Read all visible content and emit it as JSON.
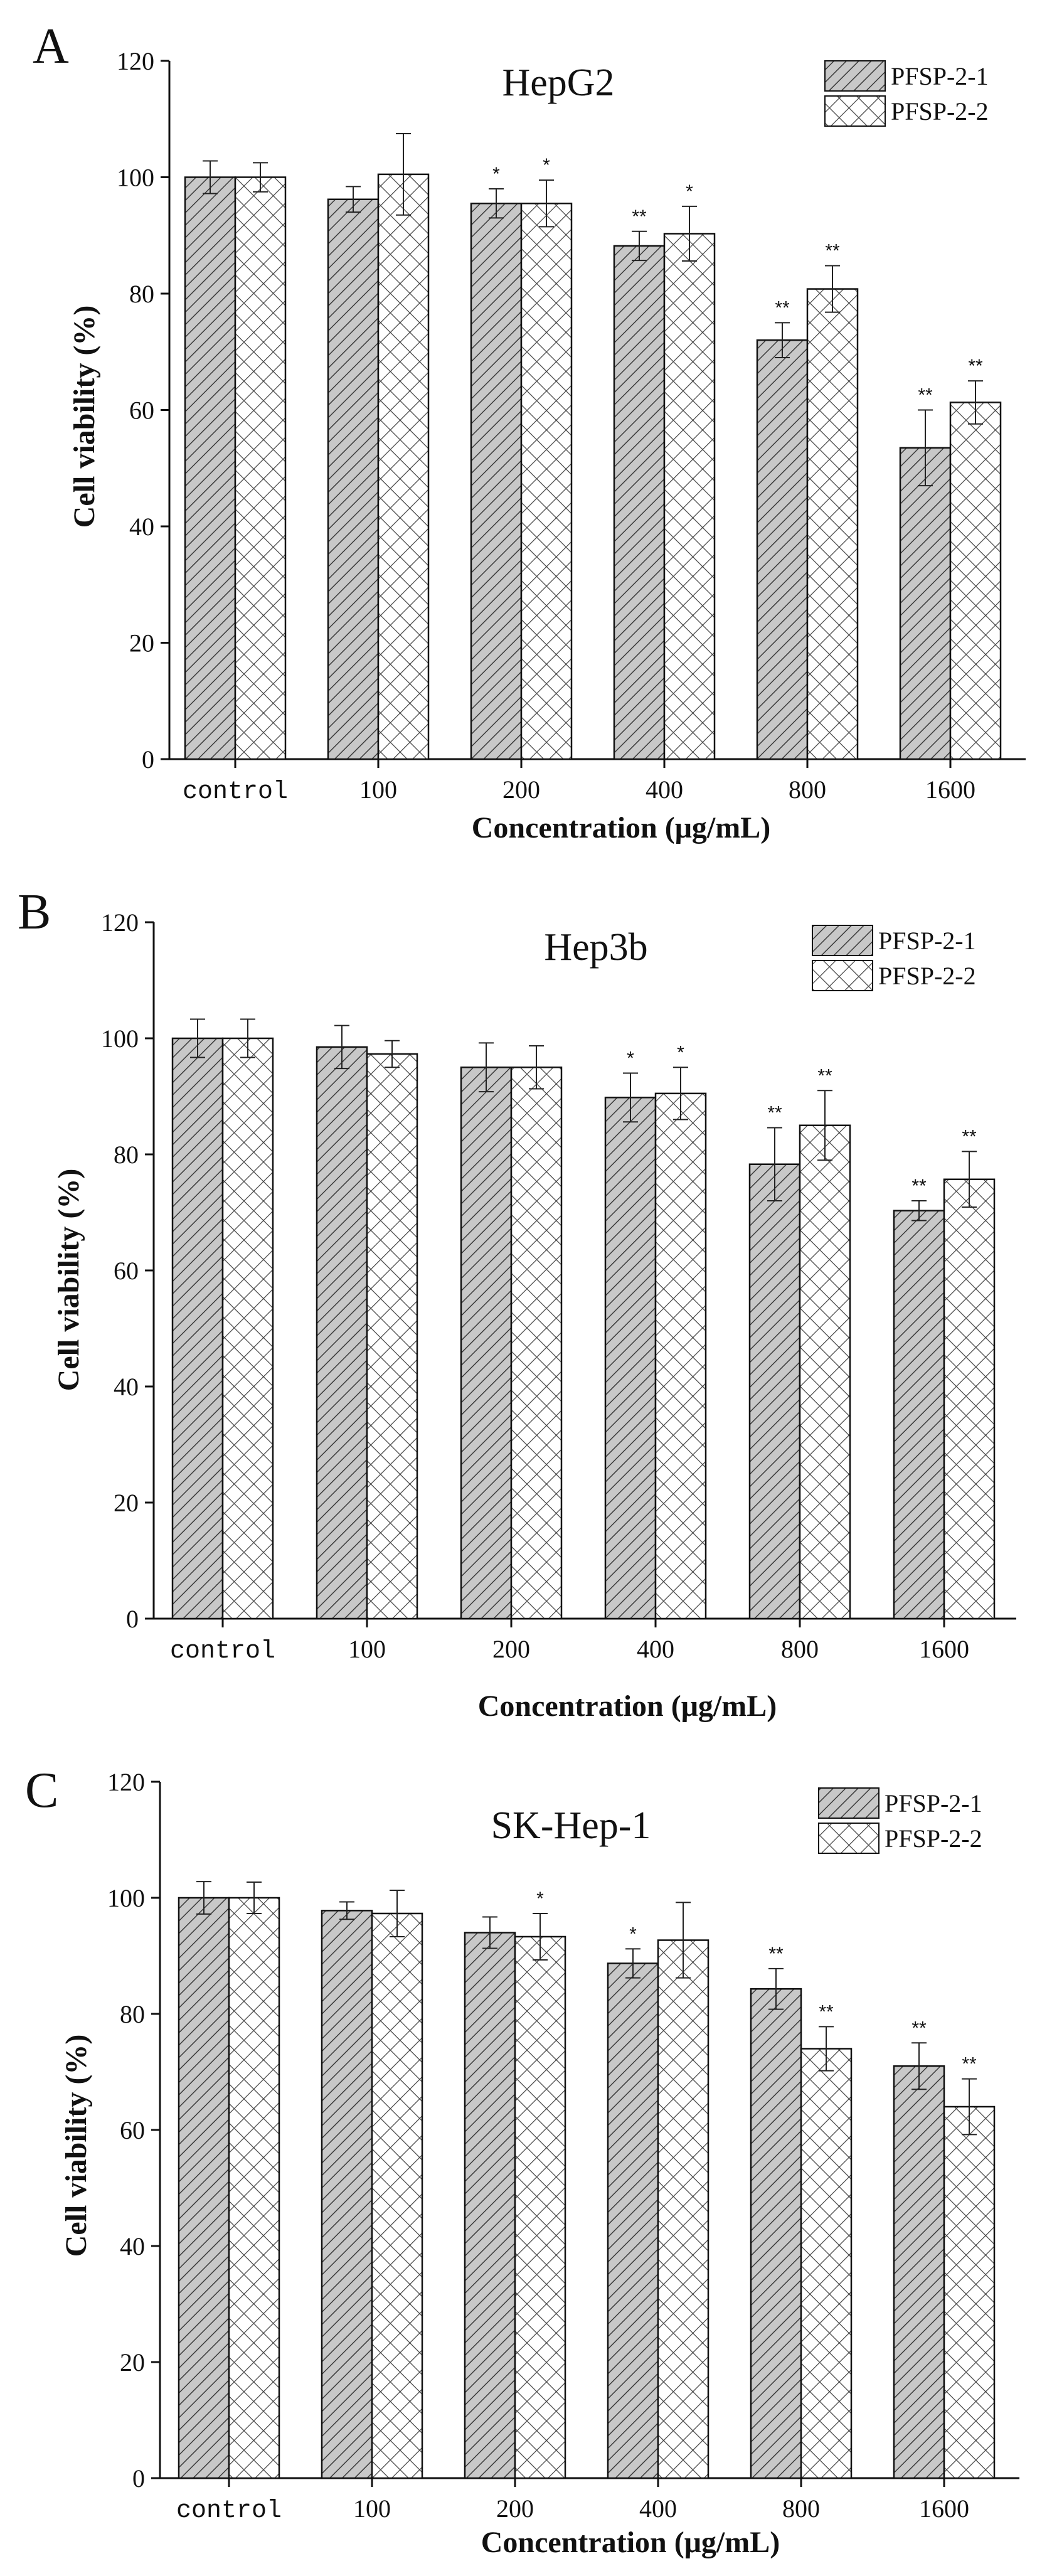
{
  "figure": {
    "panels": [
      "A",
      "B",
      "C"
    ]
  },
  "chart_data": [
    {
      "panel": "A",
      "type": "bar",
      "title": "HepG2",
      "xlabel": "Concentration (μg/mL)",
      "ylabel": "Cell viability (%)",
      "ylim": [
        0,
        120
      ],
      "yticks": [
        0,
        20,
        40,
        60,
        80,
        100,
        120
      ],
      "legend_position": "top-right",
      "categories": [
        "control",
        "100",
        "200",
        "400",
        "800",
        "1600"
      ],
      "series": [
        {
          "name": "PFSP-2-1",
          "pattern": "diagonal",
          "values": [
            100,
            96.2,
            95.5,
            88.2,
            72.0,
            53.5
          ],
          "errors": [
            2.8,
            2.2,
            2.5,
            2.5,
            3.0,
            6.5
          ],
          "significance": [
            "",
            "",
            "*",
            "**",
            "**",
            "**"
          ]
        },
        {
          "name": "PFSP-2-2",
          "pattern": "crosshatch",
          "values": [
            100,
            100.5,
            95.5,
            90.3,
            80.8,
            61.3
          ],
          "errors": [
            2.5,
            7.0,
            4.0,
            4.7,
            4.0,
            3.7
          ],
          "significance": [
            "",
            "",
            "*",
            "*",
            "**",
            "**"
          ]
        }
      ]
    },
    {
      "panel": "B",
      "type": "bar",
      "title": "Hep3b",
      "xlabel": "Concentration (μg/mL)",
      "ylabel": "Cell viability (%)",
      "ylim": [
        0,
        120
      ],
      "yticks": [
        0,
        20,
        40,
        60,
        80,
        100,
        120
      ],
      "legend_position": "top-right",
      "categories": [
        "control",
        "100",
        "200",
        "400",
        "800",
        "1600"
      ],
      "series": [
        {
          "name": "PFSP-2-1",
          "pattern": "diagonal",
          "values": [
            100,
            98.5,
            95.0,
            89.8,
            78.3,
            70.3
          ],
          "errors": [
            3.3,
            3.7,
            4.2,
            4.2,
            6.3,
            1.7
          ],
          "significance": [
            "",
            "",
            "",
            "*",
            "**",
            "**"
          ]
        },
        {
          "name": "PFSP-2-2",
          "pattern": "crosshatch",
          "values": [
            100,
            97.3,
            95.0,
            90.5,
            85.0,
            75.7
          ],
          "errors": [
            3.3,
            2.3,
            3.7,
            4.5,
            6.0,
            4.8
          ],
          "significance": [
            "",
            "",
            "",
            "*",
            "**",
            "**"
          ]
        }
      ]
    },
    {
      "panel": "C",
      "type": "bar",
      "title": "SK-Hep-1",
      "xlabel": "Concentration (μg/mL)",
      "ylabel": "Cell viability (%)",
      "ylim": [
        0,
        120
      ],
      "yticks": [
        0,
        20,
        40,
        60,
        80,
        100,
        120
      ],
      "legend_position": "top-right",
      "categories": [
        "control",
        "100",
        "200",
        "400",
        "800",
        "1600"
      ],
      "series": [
        {
          "name": "PFSP-2-1",
          "pattern": "diagonal",
          "values": [
            100,
            97.8,
            94.0,
            88.7,
            84.3,
            71.0
          ],
          "errors": [
            2.8,
            1.5,
            2.7,
            2.5,
            3.5,
            4.0
          ],
          "significance": [
            "",
            "",
            "",
            "*",
            "**",
            "**"
          ]
        },
        {
          "name": "PFSP-2-2",
          "pattern": "crosshatch",
          "values": [
            100,
            97.3,
            93.3,
            92.7,
            74.0,
            64.0
          ],
          "errors": [
            2.7,
            4.0,
            4.0,
            6.5,
            3.8,
            4.8
          ],
          "significance": [
            "",
            "",
            "*",
            "",
            "**",
            "**"
          ]
        }
      ]
    }
  ]
}
